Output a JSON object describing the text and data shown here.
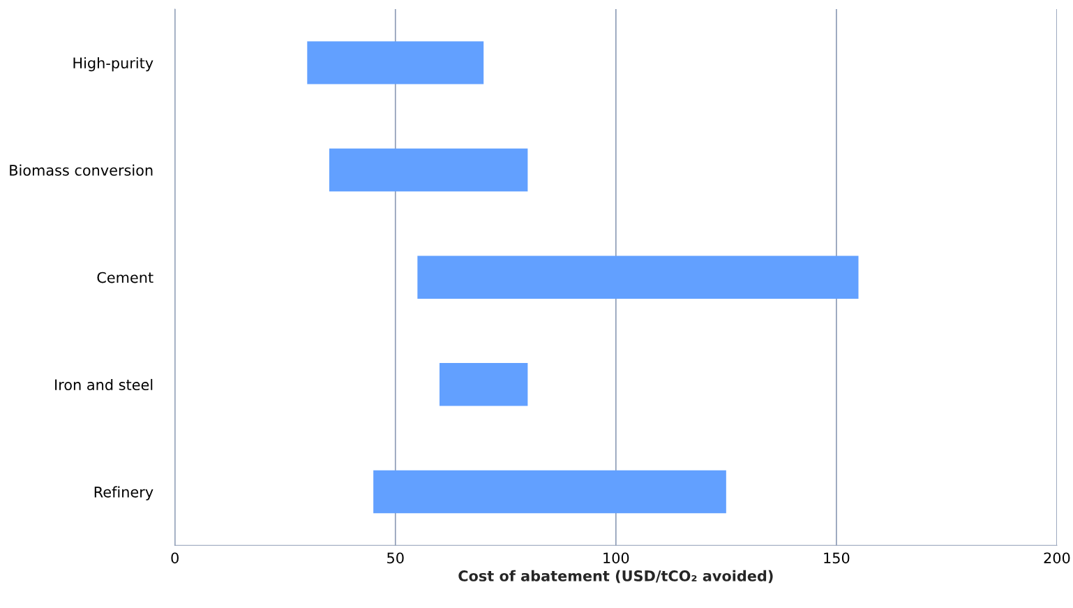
{
  "chart_data": {
    "type": "bar",
    "orientation": "horizontal",
    "xlabel": "Cost of abatement (USD/tCO₂ avoided)",
    "categories": [
      "High-purity",
      "Biomass conversion",
      "Cement",
      "Iron and steel",
      "Refinery"
    ],
    "base": [
      30,
      35,
      55,
      60,
      45
    ],
    "values": [
      40,
      45,
      100,
      20,
      80
    ],
    "color": "#62a0ff",
    "xlim": [
      0,
      200
    ],
    "xticks": [
      0,
      50,
      100,
      150,
      200
    ],
    "grid": "x"
  }
}
